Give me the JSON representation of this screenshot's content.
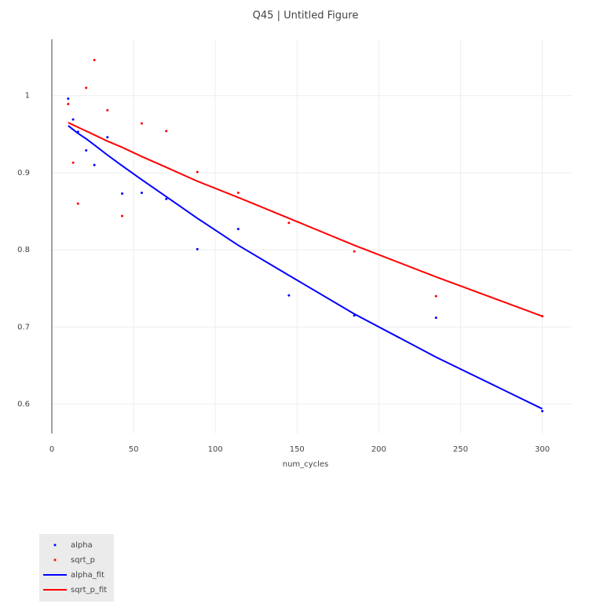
{
  "chart_data": {
    "type": "scatter",
    "title": "Q45 | Untitled Figure",
    "x_label": "num_cycles",
    "x": [
      10,
      13,
      16,
      21,
      26,
      34,
      43,
      55,
      70,
      89,
      114,
      145,
      185,
      235,
      300
    ],
    "series": [
      {
        "name": "alpha",
        "mode": "markers",
        "color": "#0000ff",
        "values": [
          0.996,
          0.969,
          0.953,
          0.929,
          0.91,
          0.946,
          0.873,
          0.874,
          0.866,
          0.801,
          0.827,
          0.741,
          0.715,
          0.712,
          0.591
        ]
      },
      {
        "name": "sqrt_p",
        "mode": "markers",
        "color": "#ff0000",
        "values": [
          0.989,
          0.913,
          0.86,
          1.01,
          1.046,
          0.981,
          0.844,
          0.964,
          0.954,
          0.901,
          0.874,
          0.835,
          0.798,
          0.74,
          0.714
        ]
      },
      {
        "name": "alpha_fit",
        "mode": "lines",
        "color": "#0000ff",
        "values": [
          0.961,
          0.956,
          0.951,
          0.944,
          0.936,
          0.923,
          0.909,
          0.891,
          0.869,
          0.841,
          0.806,
          0.767,
          0.717,
          0.661,
          0.594
        ]
      },
      {
        "name": "sqrt_p_fit",
        "mode": "lines",
        "color": "#ff0000",
        "values": [
          0.965,
          0.962,
          0.959,
          0.954,
          0.949,
          0.941,
          0.933,
          0.921,
          0.907,
          0.889,
          0.868,
          0.841,
          0.806,
          0.765,
          0.714
        ]
      }
    ],
    "xlim": [
      0,
      318
    ],
    "ylim": [
      0.562,
      1.073
    ],
    "xticks": [
      0,
      50,
      100,
      150,
      200,
      250,
      300
    ],
    "yticks": [
      0.6,
      0.7,
      0.8,
      0.9,
      1
    ],
    "grid": true,
    "legend": "bottom-left"
  }
}
